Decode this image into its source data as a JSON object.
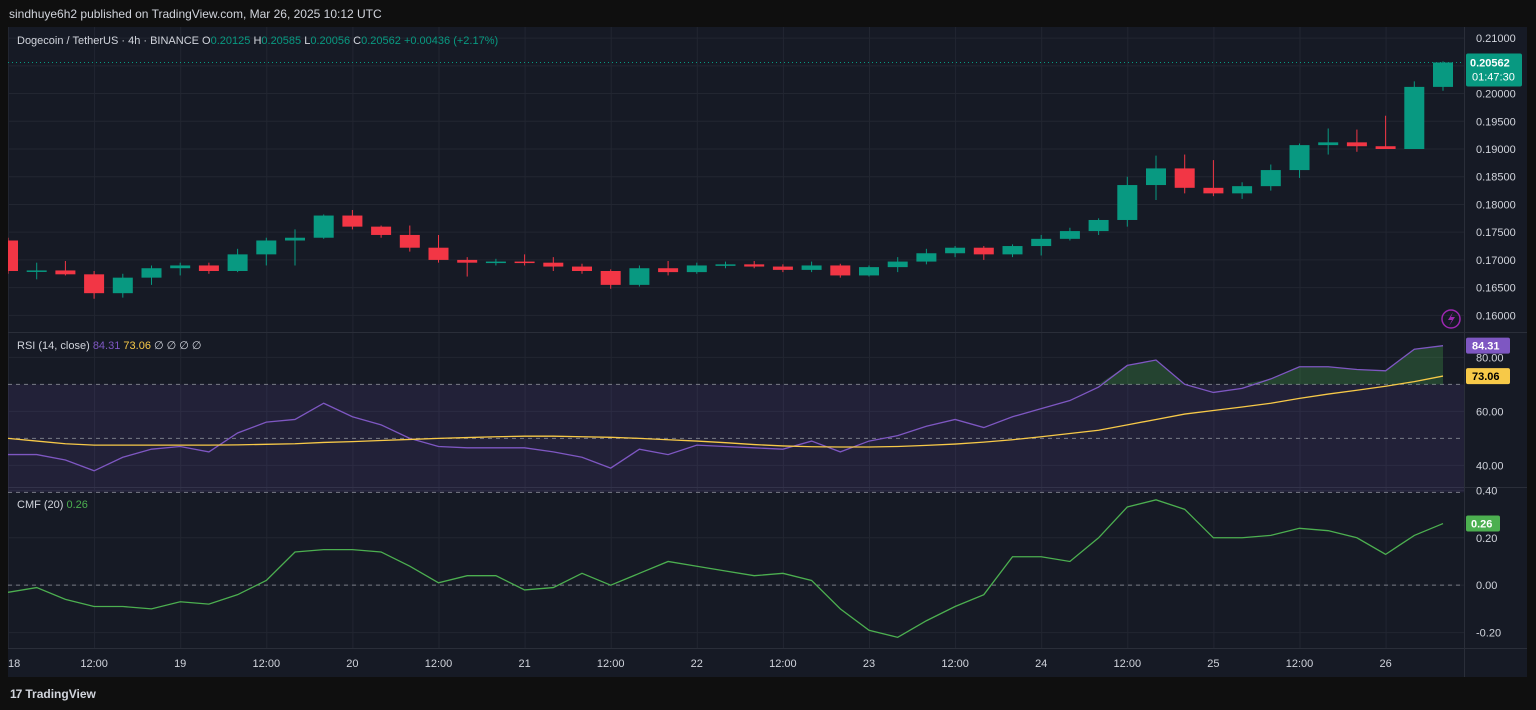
{
  "header": {
    "publish_line": "sindhuye6h2 published on TradingView.com, Mar 26, 2025 10:12 UTC"
  },
  "footer": {
    "brand": "TradingView",
    "logo_glyph": "17"
  },
  "colors": {
    "up": "#089981",
    "down": "#f23645",
    "rsi": "#7e57c2",
    "rsi_ma": "#f7c948",
    "cmf": "#4caf50",
    "bg": "#161a25",
    "grid": "#222631"
  },
  "chart_data": [
    {
      "type": "candlestick",
      "symbol": "Dogecoin / TetherUS · 4h · BINANCE",
      "ohlc_legend": {
        "o_label": "O",
        "o": "0.20125",
        "h_label": "H",
        "h": "0.20585",
        "l_label": "L",
        "l": "0.20056",
        "c_label": "C",
        "c": "0.20562",
        "change": "+0.00436 (+2.17%)"
      },
      "price_tag": "0.20562",
      "countdown": "01:47:30",
      "ylim": [
        0.157,
        0.212
      ],
      "y_ticks": [
        "0.21000",
        "0.20500",
        "0.20000",
        "0.19500",
        "0.19000",
        "0.18500",
        "0.18000",
        "0.17500",
        "0.17000",
        "0.16500",
        "0.16000"
      ],
      "x_ticks": [
        "18",
        "12:00",
        "19",
        "12:00",
        "20",
        "12:00",
        "21",
        "12:00",
        "22",
        "12:00",
        "23",
        "12:00",
        "24",
        "12:00",
        "25",
        "12:00",
        "26"
      ],
      "candles": [
        {
          "o": 0.1735,
          "h": 0.174,
          "l": 0.1675,
          "c": 0.168
        },
        {
          "o": 0.168,
          "h": 0.1695,
          "l": 0.1665,
          "c": 0.1681
        },
        {
          "o": 0.1681,
          "h": 0.1698,
          "l": 0.1672,
          "c": 0.1674
        },
        {
          "o": 0.1674,
          "h": 0.168,
          "l": 0.163,
          "c": 0.164
        },
        {
          "o": 0.164,
          "h": 0.1675,
          "l": 0.1632,
          "c": 0.1668
        },
        {
          "o": 0.1668,
          "h": 0.169,
          "l": 0.1655,
          "c": 0.1685
        },
        {
          "o": 0.1685,
          "h": 0.1695,
          "l": 0.1672,
          "c": 0.169
        },
        {
          "o": 0.169,
          "h": 0.1695,
          "l": 0.1675,
          "c": 0.168
        },
        {
          "o": 0.168,
          "h": 0.172,
          "l": 0.1678,
          "c": 0.171
        },
        {
          "o": 0.171,
          "h": 0.174,
          "l": 0.169,
          "c": 0.1735
        },
        {
          "o": 0.1735,
          "h": 0.1755,
          "l": 0.169,
          "c": 0.174
        },
        {
          "o": 0.174,
          "h": 0.1782,
          "l": 0.1738,
          "c": 0.178
        },
        {
          "o": 0.178,
          "h": 0.179,
          "l": 0.1755,
          "c": 0.176
        },
        {
          "o": 0.176,
          "h": 0.1762,
          "l": 0.174,
          "c": 0.1745
        },
        {
          "o": 0.1745,
          "h": 0.1762,
          "l": 0.1715,
          "c": 0.1722
        },
        {
          "o": 0.1722,
          "h": 0.1745,
          "l": 0.1695,
          "c": 0.17
        },
        {
          "o": 0.17,
          "h": 0.1705,
          "l": 0.167,
          "c": 0.1695
        },
        {
          "o": 0.1695,
          "h": 0.1702,
          "l": 0.169,
          "c": 0.1697
        },
        {
          "o": 0.1697,
          "h": 0.171,
          "l": 0.169,
          "c": 0.1695
        },
        {
          "o": 0.1695,
          "h": 0.1705,
          "l": 0.168,
          "c": 0.1688
        },
        {
          "o": 0.1688,
          "h": 0.1693,
          "l": 0.1675,
          "c": 0.168
        },
        {
          "o": 0.168,
          "h": 0.1683,
          "l": 0.1648,
          "c": 0.1655
        },
        {
          "o": 0.1655,
          "h": 0.169,
          "l": 0.1652,
          "c": 0.1685
        },
        {
          "o": 0.1685,
          "h": 0.1698,
          "l": 0.1672,
          "c": 0.1678
        },
        {
          "o": 0.1678,
          "h": 0.1695,
          "l": 0.1675,
          "c": 0.169
        },
        {
          "o": 0.169,
          "h": 0.1697,
          "l": 0.1685,
          "c": 0.1692
        },
        {
          "o": 0.1692,
          "h": 0.1698,
          "l": 0.1685,
          "c": 0.1688
        },
        {
          "o": 0.1688,
          "h": 0.1692,
          "l": 0.1678,
          "c": 0.1682
        },
        {
          "o": 0.1682,
          "h": 0.1697,
          "l": 0.1678,
          "c": 0.169
        },
        {
          "o": 0.169,
          "h": 0.1693,
          "l": 0.1668,
          "c": 0.1672
        },
        {
          "o": 0.1672,
          "h": 0.169,
          "l": 0.167,
          "c": 0.1687
        },
        {
          "o": 0.1687,
          "h": 0.1705,
          "l": 0.1678,
          "c": 0.1697
        },
        {
          "o": 0.1697,
          "h": 0.172,
          "l": 0.1692,
          "c": 0.1712
        },
        {
          "o": 0.1712,
          "h": 0.1725,
          "l": 0.1705,
          "c": 0.1722
        },
        {
          "o": 0.1722,
          "h": 0.1725,
          "l": 0.17,
          "c": 0.171
        },
        {
          "o": 0.171,
          "h": 0.1728,
          "l": 0.1705,
          "c": 0.1725
        },
        {
          "o": 0.1725,
          "h": 0.1745,
          "l": 0.1708,
          "c": 0.1738
        },
        {
          "o": 0.1738,
          "h": 0.1758,
          "l": 0.1735,
          "c": 0.1752
        },
        {
          "o": 0.1752,
          "h": 0.1775,
          "l": 0.1745,
          "c": 0.1772
        },
        {
          "o": 0.1772,
          "h": 0.185,
          "l": 0.176,
          "c": 0.1835
        },
        {
          "o": 0.1835,
          "h": 0.1888,
          "l": 0.1808,
          "c": 0.1865
        },
        {
          "o": 0.1865,
          "h": 0.189,
          "l": 0.182,
          "c": 0.183
        },
        {
          "o": 0.183,
          "h": 0.188,
          "l": 0.1815,
          "c": 0.182
        },
        {
          "o": 0.182,
          "h": 0.184,
          "l": 0.181,
          "c": 0.1833
        },
        {
          "o": 0.1833,
          "h": 0.1872,
          "l": 0.1825,
          "c": 0.1862
        },
        {
          "o": 0.1862,
          "h": 0.191,
          "l": 0.1848,
          "c": 0.1907
        },
        {
          "o": 0.1907,
          "h": 0.1937,
          "l": 0.189,
          "c": 0.1912
        },
        {
          "o": 0.1912,
          "h": 0.1935,
          "l": 0.1895,
          "c": 0.1905
        },
        {
          "o": 0.1905,
          "h": 0.196,
          "l": 0.19,
          "c": 0.19
        },
        {
          "o": 0.19,
          "h": 0.2022,
          "l": 0.19,
          "c": 0.2012
        },
        {
          "o": 0.2012,
          "h": 0.2058,
          "l": 0.2005,
          "c": 0.2056
        }
      ]
    },
    {
      "type": "line",
      "label": "RSI (14, close)",
      "value_rsi": "84.31",
      "value_ma": "73.06",
      "extra_values": [
        "∅",
        "∅",
        "∅",
        "∅"
      ],
      "ylim": [
        32,
        89
      ],
      "y_ticks": [
        "80.00",
        "60.00",
        "40.00"
      ],
      "bands": [
        30,
        50,
        70
      ],
      "series": [
        {
          "name": "RSI",
          "values": [
            44,
            44,
            42,
            38,
            43,
            46,
            47,
            45,
            52,
            56,
            57,
            63,
            58,
            55,
            50,
            47,
            46.5,
            46.5,
            46.5,
            45,
            43,
            39,
            46,
            44,
            47.5,
            47,
            46.5,
            46,
            49,
            45,
            49,
            51,
            54.5,
            57,
            54,
            58,
            61,
            64,
            69,
            77,
            79,
            70,
            67,
            68.5,
            72,
            76.5,
            76.5,
            75.5,
            75,
            83,
            84.3
          ]
        },
        {
          "name": "MA",
          "values": [
            50,
            49,
            48,
            47.5,
            47.5,
            47.5,
            47.5,
            47.5,
            47.6,
            47.8,
            48,
            48.5,
            48.8,
            49.2,
            49.6,
            50,
            50.3,
            50.6,
            50.8,
            50.8,
            50.6,
            50.4,
            50,
            49.5,
            49,
            48.4,
            47.7,
            47.2,
            46.9,
            46.8,
            46.8,
            47,
            47.4,
            47.9,
            48.6,
            49.5,
            50.6,
            51.8,
            53,
            55,
            57,
            59,
            60.3,
            61.6,
            63,
            64.8,
            66.4,
            67.8,
            69.3,
            71,
            73.06
          ]
        }
      ]
    },
    {
      "type": "line",
      "label": "CMF (20)",
      "value": "0.26",
      "ylim": [
        -0.265,
        0.41
      ],
      "y_ticks": [
        "0.40",
        "0.20",
        "0.00",
        "-0.20"
      ],
      "series": [
        {
          "name": "CMF",
          "values": [
            -0.03,
            -0.01,
            -0.06,
            -0.09,
            -0.09,
            -0.1,
            -0.07,
            -0.08,
            -0.04,
            0.02,
            0.14,
            0.15,
            0.15,
            0.14,
            0.08,
            0.01,
            0.04,
            0.04,
            -0.02,
            -0.01,
            0.05,
            0.0,
            0.05,
            0.1,
            0.08,
            0.06,
            0.04,
            0.05,
            0.02,
            -0.1,
            -0.19,
            -0.22,
            -0.15,
            -0.09,
            -0.04,
            0.12,
            0.12,
            0.1,
            0.2,
            0.33,
            0.36,
            0.32,
            0.2,
            0.2,
            0.21,
            0.24,
            0.23,
            0.2,
            0.13,
            0.21,
            0.26
          ]
        }
      ]
    }
  ]
}
